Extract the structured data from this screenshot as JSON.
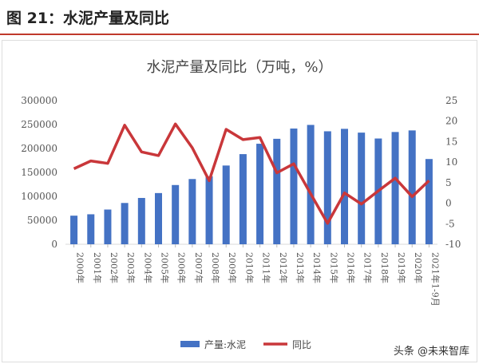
{
  "figure_title": "图 21：水泥产量及同比",
  "watermark": "头条 @未来智库",
  "chart_data": {
    "type": "bar+line",
    "title": "水泥产量及同比（万吨，%）",
    "categories": [
      "2000年",
      "2001年",
      "2002年",
      "2003年",
      "2004年",
      "2005年",
      "2006年",
      "2007年",
      "2008年",
      "2009年",
      "2010年",
      "2011年",
      "2012年",
      "2013年",
      "2014年",
      "2015年",
      "2016年",
      "2017年",
      "2018年",
      "2019年",
      "2020年",
      "2021年1-9月"
    ],
    "series": [
      {
        "name": "产量:水泥",
        "type": "bar",
        "axis": "left",
        "color": "#4472c4",
        "values": [
          59700,
          62600,
          72500,
          86200,
          96700,
          106900,
          123700,
          136200,
          142000,
          164400,
          188200,
          209900,
          220200,
          241600,
          249200,
          235900,
          241000,
          233100,
          220800,
          234400,
          237700,
          178000
        ]
      },
      {
        "name": "同比",
        "type": "line",
        "axis": "right",
        "color": "#c9373a",
        "values": [
          8.4,
          10.3,
          9.7,
          19.0,
          12.5,
          11.6,
          19.3,
          13.5,
          5.5,
          18.0,
          15.5,
          16.0,
          7.4,
          9.6,
          2.3,
          -4.9,
          2.5,
          -0.2,
          3.0,
          6.1,
          1.6,
          5.5
        ]
      }
    ],
    "left_axis": {
      "min": 0,
      "max": 300000,
      "ticks": [
        "0",
        "50000",
        "100000",
        "150000",
        "200000",
        "250000",
        "300000"
      ]
    },
    "right_axis": {
      "min": -10,
      "max": 25,
      "ticks": [
        "-10",
        "-5",
        "0",
        "5",
        "10",
        "15",
        "20",
        "25"
      ]
    },
    "legend": "bottom"
  }
}
